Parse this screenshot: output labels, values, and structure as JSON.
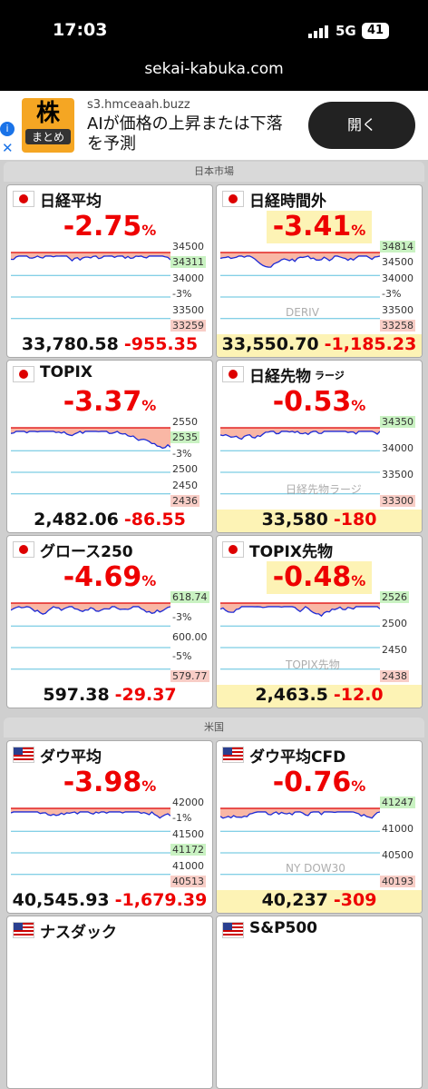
{
  "status": {
    "time": "17:03",
    "network": "5G",
    "battery": "41"
  },
  "url": "sekai-kabuka.com",
  "ad": {
    "icon_top": "株",
    "icon_bottom": "まとめ",
    "domain": "s3.hmceaah.buzz",
    "text": "AIが価格の上昇または下落を予測",
    "button": "開く"
  },
  "sections": [
    {
      "title": "日本市場",
      "tiles": [
        {
          "name": "日経平均",
          "flag": "jp",
          "pct": "-2.75",
          "unit": "%",
          "price": "33,780.58",
          "change": "-955.35",
          "labels": [
            {
              "text": "34500"
            },
            {
              "text": "34311",
              "kind": "high"
            },
            {
              "text": "34000"
            },
            {
              "text": "-3%"
            },
            {
              "text": "33500"
            },
            {
              "text": "33259",
              "kind": "low"
            }
          ]
        },
        {
          "name": "日経時間外",
          "flag": "jp",
          "pct": "-3.41",
          "unit": "%",
          "price": "33,550.70",
          "change": "-1,185.23",
          "highlight": true,
          "labels": [
            {
              "text": "34814",
              "kind": "high"
            },
            {
              "text": "34500"
            },
            {
              "text": "34000"
            },
            {
              "text": "-3%"
            },
            {
              "text": "33500"
            },
            {
              "text": "33258",
              "kind": "low"
            }
          ],
          "watermark": "DERIV"
        },
        {
          "name": "TOPIX",
          "flag": "jp",
          "pct": "-3.37",
          "unit": "%",
          "price": "2,482.06",
          "change": "-86.55",
          "labels": [
            {
              "text": "2550"
            },
            {
              "text": "2535",
              "kind": "high"
            },
            {
              "text": "-3%"
            },
            {
              "text": "2500"
            },
            {
              "text": "2450"
            },
            {
              "text": "2436",
              "kind": "low"
            }
          ]
        },
        {
          "name": "日経先物",
          "sub": "ラージ",
          "flag": "jp",
          "pct": "-0.53",
          "unit": "%",
          "price": "33,580",
          "change": "-180",
          "highlight_price": true,
          "labels": [
            {
              "text": "34350",
              "kind": "high"
            },
            {
              "text": "34000"
            },
            {
              "text": "33500"
            },
            {
              "text": "33300",
              "kind": "low"
            }
          ],
          "watermark": "日経先物ラージ"
        },
        {
          "name": "グロース250",
          "flag": "jp",
          "pct": "-4.69",
          "unit": "%",
          "price": "597.38",
          "change": "-29.37",
          "labels": [
            {
              "text": "618.74",
              "kind": "high"
            },
            {
              "text": "-3%"
            },
            {
              "text": "600.00"
            },
            {
              "text": "-5%"
            },
            {
              "text": "579.77",
              "kind": "low"
            }
          ]
        },
        {
          "name": "TOPIX先物",
          "flag": "jp",
          "pct": "-0.48",
          "unit": "%",
          "price": "2,463.5",
          "change": "-12.0",
          "highlight": true,
          "labels": [
            {
              "text": "2526",
              "kind": "high"
            },
            {
              "text": "2500"
            },
            {
              "text": "2450"
            },
            {
              "text": "2438",
              "kind": "low"
            }
          ],
          "watermark": "TOPIX先物"
        }
      ]
    },
    {
      "title": "米国",
      "tiles": [
        {
          "name": "ダウ平均",
          "flag": "us",
          "pct": "-3.98",
          "unit": "%",
          "price": "40,545.93",
          "change": "-1,679.39",
          "labels": [
            {
              "text": "42000"
            },
            {
              "text": "-1%"
            },
            {
              "text": "41500"
            },
            {
              "text": "41172",
              "kind": "high"
            },
            {
              "text": "41000"
            },
            {
              "text": "40513",
              "kind": "low"
            }
          ]
        },
        {
          "name": "ダウ平均CFD",
          "flag": "us",
          "pct": "-0.76",
          "unit": "%",
          "price": "40,237",
          "change": "-309",
          "highlight_price": true,
          "labels": [
            {
              "text": "41247",
              "kind": "high"
            },
            {
              "text": "41000"
            },
            {
              "text": "40500"
            },
            {
              "text": "40193",
              "kind": "low"
            }
          ],
          "watermark": "NY DOW30"
        },
        {
          "name": "ナスダック",
          "flag": "us"
        },
        {
          "name": "S&P500",
          "flag": "us"
        }
      ]
    }
  ]
}
